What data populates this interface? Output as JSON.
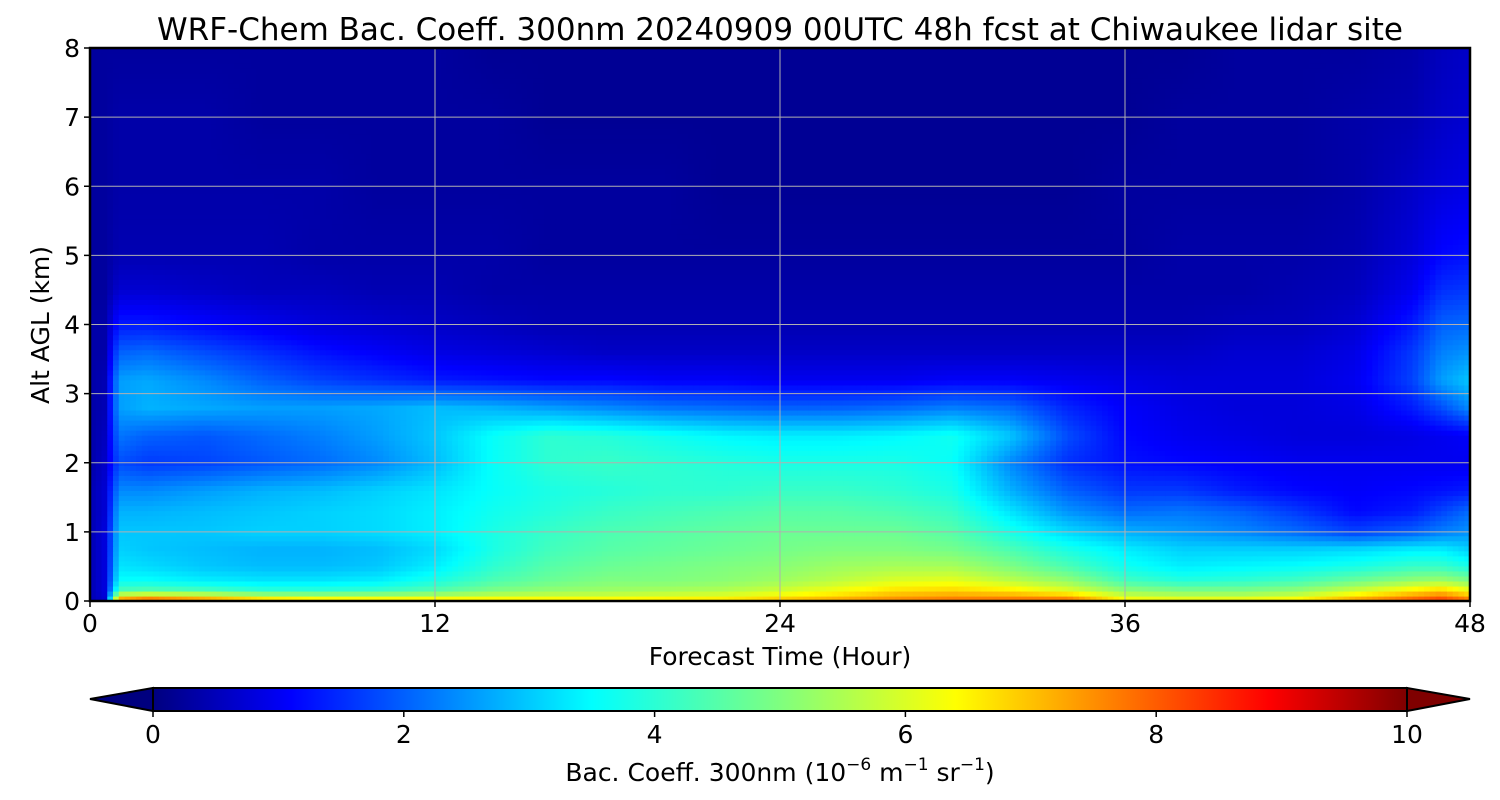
{
  "chart_data": {
    "type": "heatmap",
    "title": "WRF-Chem Bac. Coeff. 300nm  20240909 00UTC 48h fcst at Chiwaukee lidar site",
    "xlabel": "Forecast Time (Hour)",
    "ylabel": "Alt AGL (km)",
    "xlim": [
      0,
      48
    ],
    "ylim": [
      0,
      8
    ],
    "xticks": [
      "0",
      "12",
      "24",
      "36",
      "48"
    ],
    "yticks": [
      "0",
      "1",
      "2",
      "3",
      "4",
      "5",
      "6",
      "7",
      "8"
    ],
    "grid": true,
    "colormap": "jet",
    "colorbar": {
      "label_main": "Bac. Coeff. 300nm  (10",
      "label_exp1": "−6",
      "label_mid": " m",
      "label_exp2": "−1",
      "label_mid2": " sr",
      "label_exp3": "−1",
      "label_end": ")",
      "range": [
        0,
        10
      ],
      "ticks": [
        "0",
        "2",
        "4",
        "6",
        "8",
        "10"
      ],
      "extend": "both",
      "placement": "bottom"
    },
    "x_hours": [
      0,
      0.5,
      1,
      2,
      4,
      6,
      8,
      10,
      12,
      14,
      16,
      18,
      20,
      22,
      24,
      26,
      28,
      30,
      32,
      34,
      36,
      38,
      40,
      42,
      44,
      46,
      47,
      48
    ],
    "z_km": [
      0,
      0.05,
      0.15,
      0.3,
      0.5,
      0.75,
      1.0,
      1.3,
      1.6,
      2.0,
      2.4,
      2.8,
      3.2,
      3.6,
      4.0,
      4.5,
      5.0,
      6.0,
      7.0,
      8.0
    ],
    "values": [
      [
        0.5,
        0.8,
        7.5,
        8.0,
        7.5,
        7.0,
        6.8,
        6.7,
        6.8,
        6.8,
        6.8,
        6.8,
        6.8,
        6.8,
        7.2,
        7.5,
        7.6,
        7.7,
        7.8,
        7.9,
        6.5,
        6.5,
        6.6,
        6.8,
        7.5,
        8.2,
        8.5,
        8.0
      ],
      [
        0.5,
        0.8,
        6.8,
        7.2,
        6.8,
        6.2,
        6.0,
        6.0,
        6.0,
        6.0,
        6.0,
        6.0,
        6.1,
        6.2,
        6.5,
        6.8,
        7.2,
        7.4,
        7.4,
        7.3,
        6.0,
        5.8,
        5.8,
        6.0,
        6.8,
        7.5,
        7.8,
        7.2
      ],
      [
        0.5,
        0.9,
        4.5,
        4.6,
        4.5,
        4.2,
        4.2,
        4.3,
        4.6,
        5.0,
        5.2,
        5.3,
        5.4,
        5.5,
        5.8,
        6.2,
        6.6,
        6.7,
        6.5,
        6.0,
        5.2,
        5.0,
        5.0,
        5.2,
        5.8,
        6.5,
        6.8,
        6.2
      ],
      [
        0.5,
        0.9,
        3.8,
        3.8,
        3.6,
        3.5,
        3.5,
        3.6,
        4.0,
        4.5,
        4.8,
        5.0,
        5.0,
        5.1,
        5.3,
        5.6,
        5.9,
        6.0,
        5.6,
        5.2,
        4.4,
        4.1,
        4.2,
        4.4,
        4.8,
        5.2,
        5.3,
        5.0
      ],
      [
        0.5,
        0.9,
        3.5,
        3.4,
        3.2,
        3.1,
        3.1,
        3.2,
        3.6,
        4.2,
        4.6,
        4.8,
        4.9,
        5.0,
        5.1,
        5.3,
        5.4,
        5.4,
        5.0,
        4.5,
        3.9,
        3.6,
        3.7,
        3.8,
        4.0,
        4.3,
        4.3,
        4.0
      ],
      [
        0.5,
        0.9,
        3.3,
        3.2,
        3.1,
        3.0,
        3.0,
        3.1,
        3.4,
        4.0,
        4.4,
        4.6,
        4.7,
        4.8,
        4.9,
        5.0,
        5.0,
        4.9,
        4.5,
        4.0,
        3.6,
        3.3,
        3.3,
        3.3,
        3.4,
        3.6,
        3.6,
        3.3
      ],
      [
        0.5,
        0.9,
        3.2,
        3.2,
        3.2,
        3.3,
        3.3,
        3.4,
        3.6,
        4.0,
        4.3,
        4.5,
        4.6,
        4.7,
        4.8,
        4.8,
        4.8,
        4.6,
        4.0,
        3.4,
        3.0,
        2.8,
        2.6,
        2.3,
        1.9,
        2.2,
        2.5,
        2.7
      ],
      [
        0.5,
        0.8,
        3.0,
        3.0,
        3.1,
        3.2,
        3.3,
        3.4,
        3.6,
        3.9,
        4.1,
        4.3,
        4.4,
        4.5,
        4.6,
        4.6,
        4.5,
        4.3,
        3.5,
        2.7,
        2.3,
        2.4,
        2.2,
        1.8,
        1.3,
        1.5,
        1.9,
        2.3
      ],
      [
        0.5,
        0.8,
        2.6,
        2.6,
        2.8,
        3.0,
        3.1,
        3.3,
        3.5,
        3.8,
        4.0,
        4.1,
        4.2,
        4.2,
        4.3,
        4.3,
        4.2,
        4.0,
        3.0,
        2.2,
        1.8,
        1.8,
        1.5,
        1.3,
        1.2,
        1.3,
        1.4,
        1.5
      ],
      [
        0.4,
        0.7,
        2.0,
        1.8,
        1.9,
        2.1,
        2.3,
        2.6,
        3.1,
        3.8,
        4.2,
        4.3,
        4.2,
        4.1,
        4.0,
        4.0,
        4.0,
        3.8,
        2.6,
        1.7,
        1.4,
        1.3,
        1.2,
        1.1,
        1.1,
        1.1,
        1.1,
        1.1
      ],
      [
        0.4,
        0.6,
        2.4,
        2.2,
        2.1,
        2.3,
        2.5,
        2.8,
        3.2,
        3.8,
        4.2,
        4.1,
        3.9,
        3.7,
        3.6,
        3.6,
        3.7,
        3.9,
        3.2,
        2.0,
        1.3,
        1.1,
        1.0,
        0.9,
        0.9,
        1.0,
        1.1,
        1.2
      ],
      [
        0.4,
        0.5,
        2.8,
        3.0,
        2.9,
        2.8,
        2.8,
        2.9,
        3.1,
        3.0,
        2.8,
        2.6,
        2.4,
        2.3,
        2.2,
        2.2,
        2.3,
        2.5,
        2.3,
        1.6,
        1.2,
        1.0,
        0.9,
        0.9,
        1.0,
        1.5,
        2.0,
        2.6
      ],
      [
        0.4,
        0.5,
        2.8,
        2.9,
        2.6,
        2.2,
        1.9,
        1.7,
        1.5,
        1.4,
        1.3,
        1.3,
        1.2,
        1.2,
        1.1,
        1.1,
        1.1,
        1.2,
        1.2,
        1.1,
        1.0,
        0.9,
        0.9,
        0.9,
        1.1,
        1.9,
        2.8,
        3.2
      ],
      [
        0.4,
        0.4,
        2.2,
        2.3,
        2.0,
        1.7,
        1.4,
        1.2,
        1.0,
        0.9,
        0.8,
        0.7,
        0.7,
        0.7,
        0.7,
        0.7,
        0.7,
        0.7,
        0.7,
        0.7,
        0.7,
        0.7,
        0.8,
        0.8,
        1.0,
        1.8,
        2.5,
        2.7
      ],
      [
        0.4,
        0.4,
        1.5,
        1.5,
        1.3,
        1.1,
        0.9,
        0.8,
        0.7,
        0.6,
        0.5,
        0.5,
        0.5,
        0.5,
        0.5,
        0.5,
        0.5,
        0.5,
        0.5,
        0.5,
        0.5,
        0.5,
        0.6,
        0.6,
        0.8,
        1.5,
        2.2,
        2.3
      ],
      [
        0.3,
        0.3,
        0.8,
        0.8,
        0.7,
        0.6,
        0.6,
        0.5,
        0.5,
        0.4,
        0.4,
        0.4,
        0.4,
        0.4,
        0.4,
        0.4,
        0.4,
        0.4,
        0.4,
        0.4,
        0.4,
        0.4,
        0.4,
        0.5,
        0.6,
        1.1,
        1.7,
        1.8
      ],
      [
        0.3,
        0.3,
        0.5,
        0.5,
        0.5,
        0.5,
        0.4,
        0.4,
        0.4,
        0.4,
        0.3,
        0.3,
        0.3,
        0.3,
        0.3,
        0.3,
        0.3,
        0.3,
        0.3,
        0.3,
        0.3,
        0.4,
        0.4,
        0.4,
        0.5,
        0.9,
        1.3,
        1.4
      ],
      [
        0.3,
        0.3,
        0.4,
        0.4,
        0.4,
        0.4,
        0.4,
        0.3,
        0.3,
        0.3,
        0.3,
        0.3,
        0.3,
        0.2,
        0.2,
        0.2,
        0.2,
        0.2,
        0.2,
        0.2,
        0.3,
        0.3,
        0.3,
        0.3,
        0.4,
        0.7,
        0.9,
        1.0
      ],
      [
        0.3,
        0.3,
        0.4,
        0.4,
        0.4,
        0.3,
        0.3,
        0.3,
        0.3,
        0.3,
        0.2,
        0.2,
        0.2,
        0.2,
        0.2,
        0.2,
        0.2,
        0.2,
        0.2,
        0.2,
        0.2,
        0.3,
        0.3,
        0.3,
        0.4,
        0.5,
        0.7,
        0.8
      ],
      [
        0.3,
        0.3,
        0.3,
        0.3,
        0.3,
        0.3,
        0.3,
        0.3,
        0.3,
        0.2,
        0.2,
        0.2,
        0.2,
        0.2,
        0.2,
        0.2,
        0.2,
        0.2,
        0.2,
        0.2,
        0.2,
        0.2,
        0.3,
        0.3,
        0.3,
        0.4,
        0.6,
        0.7
      ]
    ]
  }
}
